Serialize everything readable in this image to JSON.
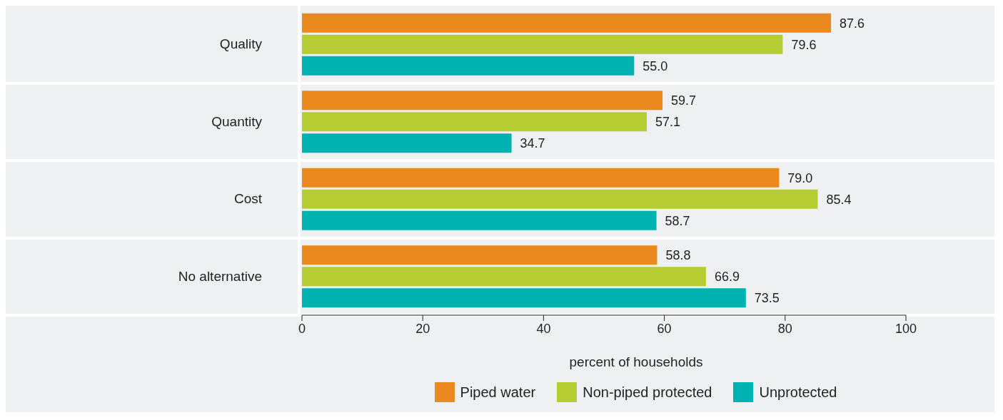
{
  "chart_data": {
    "type": "bar",
    "orientation": "horizontal",
    "categories": [
      "Quality",
      "Quantity",
      "Cost",
      "No alternative"
    ],
    "series": [
      {
        "name": "Piped water",
        "color": "#ea8a1e",
        "values": [
          87.6,
          59.7,
          79.0,
          58.8
        ],
        "value_labels": [
          "87.6",
          "59.7",
          "79.0",
          "58.8"
        ]
      },
      {
        "name": "Non-piped protected",
        "color": "#b5cc33",
        "values": [
          79.6,
          57.1,
          85.4,
          66.9
        ],
        "value_labels": [
          "79.6",
          "57.1",
          "85.4",
          "66.9"
        ]
      },
      {
        "name": "Unprotected",
        "color": "#00b3b0",
        "values": [
          55.0,
          34.7,
          58.7,
          73.5
        ],
        "value_labels": [
          "55.0",
          "34.7",
          "58.7",
          "73.5"
        ]
      }
    ],
    "xlim": [
      0,
      100
    ],
    "xticks": [
      0,
      20,
      40,
      60,
      80,
      100
    ],
    "xlabel": "percent of households",
    "data_labels": true,
    "legend": "bottom",
    "grid": false
  }
}
